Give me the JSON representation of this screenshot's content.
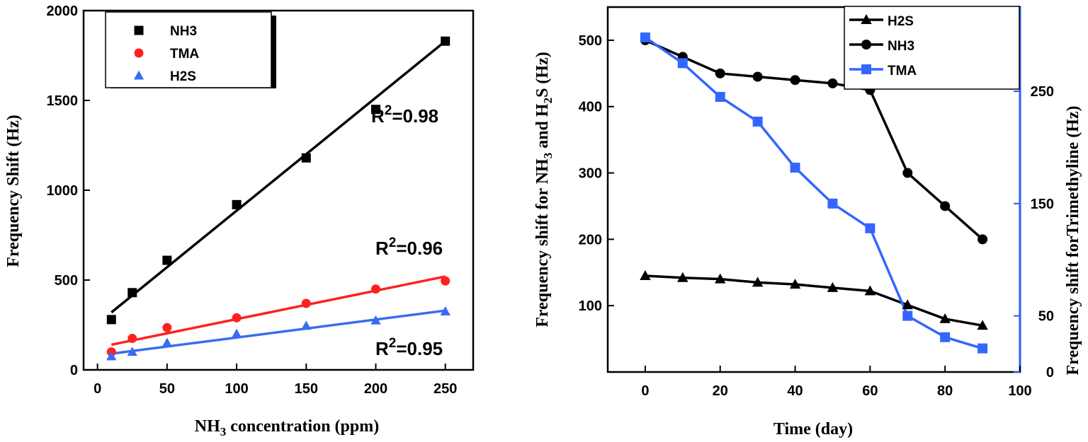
{
  "chart_data": [
    {
      "type": "scatter",
      "xlabel": "NH3 concentration (ppm)",
      "ylabel": "Frequency Shift (Hz)",
      "xlim": [
        -10,
        270
      ],
      "ylim": [
        0,
        2000
      ],
      "xticks": [
        "0",
        "50",
        "100",
        "150",
        "200",
        "250"
      ],
      "yticks": [
        "0",
        "500",
        "1000",
        "1500",
        "2000"
      ],
      "legend_position": "top-left",
      "series": [
        {
          "name": "NH3",
          "color": "#000000",
          "marker": "square",
          "x": [
            10,
            25,
            50,
            100,
            150,
            200,
            250
          ],
          "y": [
            280,
            430,
            610,
            920,
            1180,
            1450,
            1830
          ],
          "fit": [
            [
              10,
              320
            ],
            [
              250,
              1830
            ]
          ],
          "r2": "R2=0.98",
          "r2_sup": "2"
        },
        {
          "name": "TMA",
          "color": "#ff2020",
          "marker": "circle",
          "x": [
            10,
            25,
            50,
            100,
            150,
            200,
            250
          ],
          "y": [
            100,
            175,
            235,
            290,
            370,
            450,
            495
          ],
          "fit": [
            [
              10,
              140
            ],
            [
              250,
              520
            ]
          ],
          "r2": "R2=0.96",
          "r2_sup": "2"
        },
        {
          "name": "H2S",
          "color": "#3a6cf0",
          "marker": "triangle",
          "x": [
            10,
            25,
            50,
            100,
            150,
            200,
            250
          ],
          "y": [
            75,
            100,
            150,
            200,
            245,
            275,
            325
          ],
          "fit": [
            [
              10,
              90
            ],
            [
              250,
              330
            ]
          ],
          "r2": "R2=0.95",
          "r2_sup": "2"
        }
      ],
      "r2_labels": [
        {
          "prefix": "R",
          "sup": "2",
          "suffix": "=0.98"
        },
        {
          "prefix": "R",
          "sup": "2",
          "suffix": "=0.96"
        },
        {
          "prefix": "R",
          "sup": "2",
          "suffix": "=0.95"
        }
      ]
    },
    {
      "type": "line",
      "xlabel": "Time (day)",
      "ylabel_left": "Frequency shift for NH3 and H2S (Hz)",
      "ylabel_right": "Frequency shift forTrimethyline (Hz)",
      "xlim": [
        -10,
        100
      ],
      "ylim_left": [
        0,
        550
      ],
      "ylim_right": [
        0,
        325
      ],
      "xticks": [
        "0",
        "20",
        "40",
        "60",
        "80",
        "100"
      ],
      "yticks_left": [
        "100",
        "200",
        "300",
        "400",
        "500"
      ],
      "yticks_right": [
        "0",
        "50",
        "150",
        "250"
      ],
      "legend_position": "top-right",
      "x": [
        0,
        10,
        20,
        30,
        40,
        50,
        60,
        70,
        80,
        90
      ],
      "series": [
        {
          "name": "H2S",
          "color": "#000000",
          "marker": "triangle",
          "axis": "left",
          "y": [
            145,
            142,
            140,
            135,
            132,
            127,
            122,
            101,
            80,
            70
          ]
        },
        {
          "name": "NH3",
          "color": "#000000",
          "marker": "circle",
          "axis": "left",
          "y": [
            500,
            475,
            450,
            445,
            440,
            435,
            425,
            300,
            250,
            200
          ]
        },
        {
          "name": "TMA",
          "color": "#3366ff",
          "marker": "square",
          "axis": "right",
          "y": [
            298,
            275,
            245,
            223,
            182,
            150,
            128,
            50,
            31,
            21
          ]
        }
      ]
    }
  ]
}
